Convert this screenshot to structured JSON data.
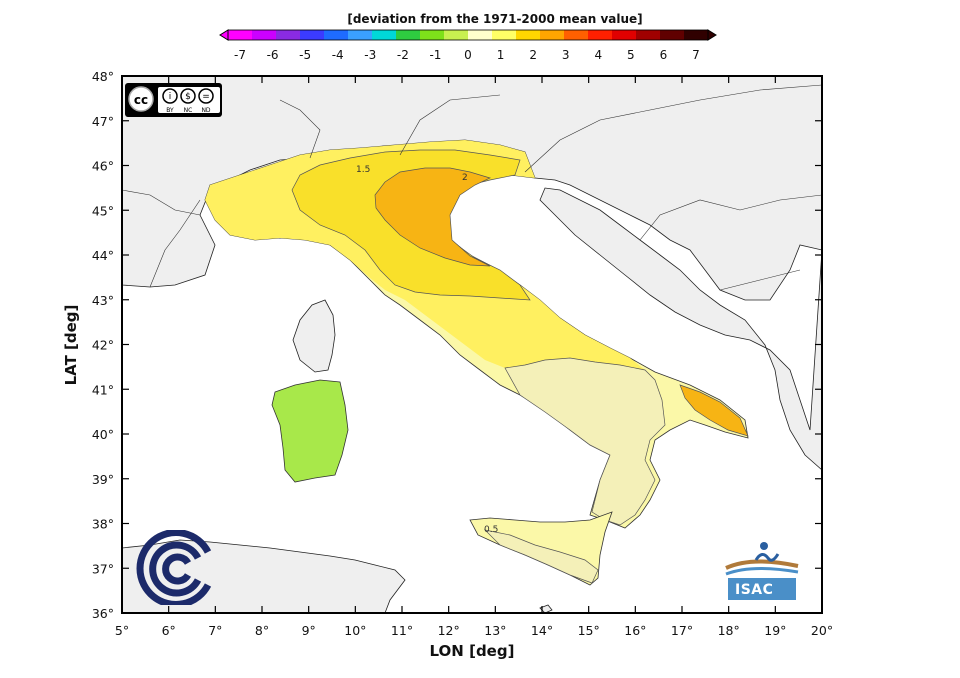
{
  "colorbar": {
    "title": "[deviation from the 1971-2000 mean value]",
    "ticks": [
      "-7",
      "-6",
      "-5",
      "-4",
      "-3",
      "-2",
      "-1",
      "0",
      "1",
      "2",
      "3",
      "4",
      "5",
      "6",
      "7"
    ],
    "colors": [
      "#ff00ff",
      "#cc00ff",
      "#8a2be2",
      "#3b3bff",
      "#1e6bff",
      "#3aa0ff",
      "#00d8d8",
      "#2ecc40",
      "#7ee01a",
      "#c8f050",
      "#ffffcc",
      "#ffff66",
      "#ffd700",
      "#ffa500",
      "#ff6000",
      "#ff2000",
      "#e00000",
      "#a00000",
      "#600000",
      "#300000"
    ]
  },
  "map": {
    "x_axis_label": "LON [deg]",
    "y_axis_label": "LAT [deg]",
    "lon_range": [
      5,
      20
    ],
    "lat_range": [
      36,
      48
    ],
    "lon_ticks": [
      "5°",
      "6°",
      "7°",
      "8°",
      "9°",
      "10°",
      "11°",
      "12°",
      "13°",
      "14°",
      "15°",
      "16°",
      "17°",
      "18°",
      "19°",
      "20°"
    ],
    "lat_ticks": [
      "36°",
      "37°",
      "38°",
      "39°",
      "40°",
      "41°",
      "42°",
      "43°",
      "44°",
      "45°",
      "46°",
      "47°",
      "48°"
    ],
    "contour_labels": [
      "1.5",
      "2",
      "0.5"
    ],
    "fill_colors": {
      "land": "#efefef",
      "sea": "#ffffff",
      "band_0_0_5": "#f4f0b8",
      "band_0_5_1": "#fbf8a8",
      "band_1_1_5": "#fff060",
      "band_1_5_2": "#f9e02a",
      "band_2_plus": "#f7b414",
      "sardinia": "#a8e84a"
    }
  },
  "logos": {
    "cc_badge": {
      "label_by": "BY",
      "label_nc": "NC",
      "label_nd": "ND"
    },
    "isac": {
      "text": "ISAC"
    },
    "cnr": {}
  }
}
